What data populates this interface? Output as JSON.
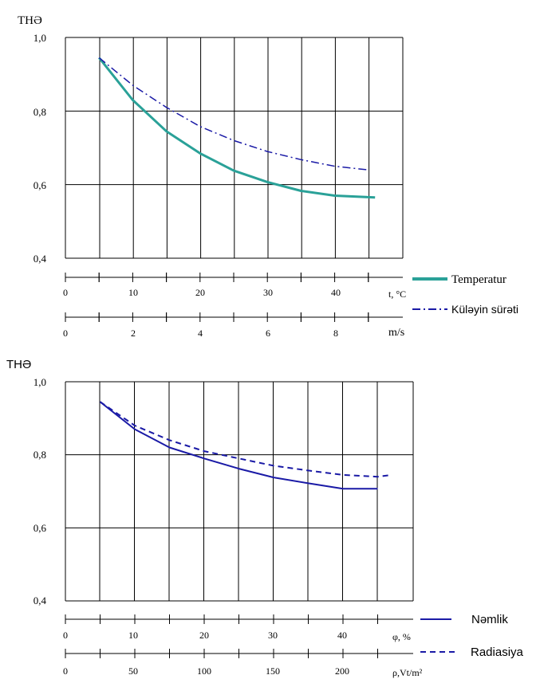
{
  "chart_data": [
    {
      "type": "line",
      "ylabel": "THƏ",
      "ylim": [
        0.4,
        1.0
      ],
      "y_ticks": [
        "1,0",
        "0,8",
        "0,6",
        "0,4"
      ],
      "x_axes": [
        {
          "label": "t, °C",
          "min": 0,
          "max": 50,
          "ticks": [
            "0",
            "10",
            "20",
            "30",
            "40"
          ]
        },
        {
          "label": "m/s",
          "min": 0,
          "max": 10,
          "ticks": [
            "0",
            "2",
            "4",
            "6",
            "8"
          ]
        }
      ],
      "series": [
        {
          "name": "Temperatur",
          "axis": 0,
          "style": "solid",
          "color": "#2aa198",
          "x": [
            5,
            10,
            15,
            20,
            25,
            30,
            35,
            40,
            46
          ],
          "y": [
            0.945,
            0.83,
            0.745,
            0.685,
            0.638,
            0.607,
            0.583,
            0.57,
            0.565
          ]
        },
        {
          "name": "Küləyin sürəti",
          "axis": 1,
          "style": "dashdot",
          "color": "#1a1aa6",
          "x": [
            1,
            2,
            3,
            4,
            5,
            6,
            7,
            8,
            9
          ],
          "y": [
            0.945,
            0.87,
            0.81,
            0.758,
            0.72,
            0.69,
            0.668,
            0.65,
            0.64
          ]
        }
      ]
    },
    {
      "type": "line",
      "ylabel": "THƏ",
      "ylim": [
        0.4,
        1.0
      ],
      "y_ticks": [
        "1,0",
        "0,8",
        "0,6",
        "0,4"
      ],
      "x_axes": [
        {
          "label": "φ, %",
          "min": 0,
          "max": 50,
          "ticks": [
            "0",
            "10",
            "20",
            "30",
            "40"
          ]
        },
        {
          "label": "ρ,Vt/m²",
          "min": 0,
          "max": 250,
          "ticks": [
            "0",
            "50",
            "100",
            "150",
            "200"
          ]
        }
      ],
      "series": [
        {
          "name": "Nəmlik",
          "axis": 0,
          "style": "solid",
          "color": "#1a1aa6",
          "x": [
            5,
            10,
            15,
            20,
            25,
            30,
            35,
            40,
            45
          ],
          "y": [
            0.945,
            0.87,
            0.82,
            0.79,
            0.762,
            0.738,
            0.722,
            0.707,
            0.707
          ]
        },
        {
          "name": "Radiasiya",
          "axis": 1,
          "style": "dashed",
          "color": "#1a1aa6",
          "x": [
            25,
            50,
            75,
            100,
            125,
            150,
            175,
            200,
            225,
            235
          ],
          "y": [
            0.945,
            0.88,
            0.84,
            0.81,
            0.79,
            0.77,
            0.757,
            0.745,
            0.74,
            0.745
          ]
        }
      ]
    }
  ]
}
